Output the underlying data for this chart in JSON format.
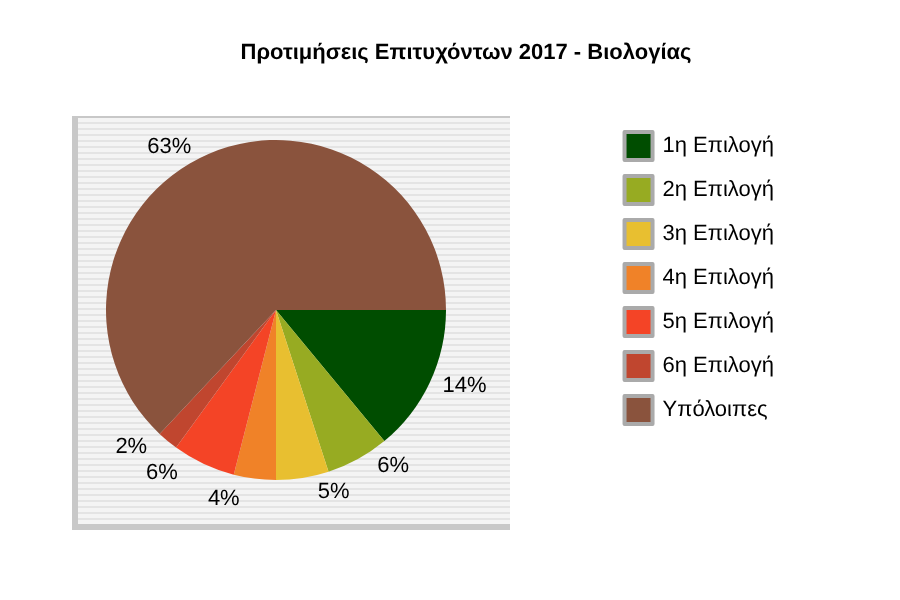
{
  "chart_data": {
    "type": "pie",
    "title": "Προτιμήσεις Επιτυχόντων 2017 - Βιολογίας",
    "categories": [
      "1η Επιλογή",
      "2η Επιλογή",
      "3η Επιλογή",
      "4η Επιλογή",
      "5η Επιλογή",
      "6η Επιλογή",
      "Υπόλοιπες"
    ],
    "values": [
      14,
      6,
      5,
      4,
      6,
      2,
      63
    ],
    "colors": [
      "#004d00",
      "#97ab22",
      "#e8bf30",
      "#f08228",
      "#f44426",
      "#c0462f",
      "#8a533d"
    ],
    "value_labels": [
      "14%",
      "6%",
      "5%",
      "4%",
      "6%",
      "2%",
      "63%"
    ],
    "legend": "right"
  }
}
